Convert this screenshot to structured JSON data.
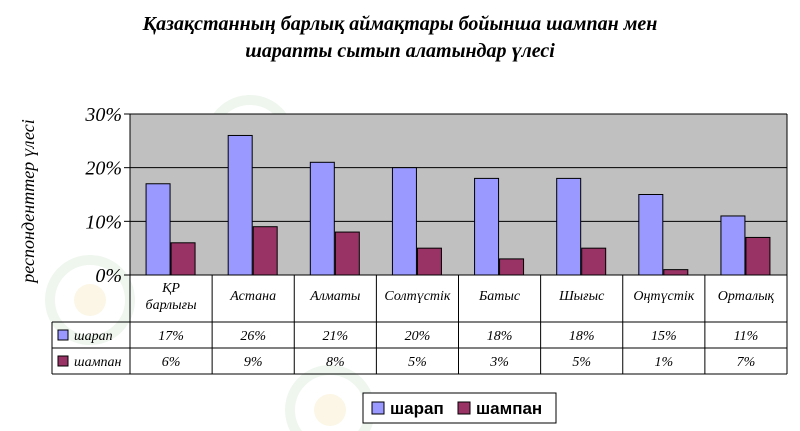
{
  "chart_data": {
    "type": "bar",
    "title_line1": "Қазақстанның барлық аймақтары бойынша шампан мен",
    "title_line2": "шарапты сытып алатындар үлесі",
    "ylabel": "респонденттер үлесі",
    "categories": [
      "ҚР|барлығы",
      "Астана",
      "Алматы",
      "Солтүстік",
      "Батыс",
      "Шығыс",
      "Оңтүстік",
      "Орталық"
    ],
    "ylim": [
      0,
      30
    ],
    "yticks": [
      "0%",
      "10%",
      "20%",
      "30%"
    ],
    "grid": true,
    "legend_position": "bottom",
    "series": [
      {
        "name": "шарап",
        "color": "#9999ff",
        "values": [
          17,
          26,
          21,
          20,
          18,
          18,
          15,
          11
        ],
        "labels": [
          "17%",
          "26%",
          "21%",
          "20%",
          "18%",
          "18%",
          "15%",
          "11%"
        ]
      },
      {
        "name": "шампан",
        "color": "#993366",
        "values": [
          6,
          9,
          8,
          5,
          3,
          5,
          1,
          7
        ],
        "labels": [
          "6%",
          "9%",
          "8%",
          "5%",
          "3%",
          "5%",
          "1%",
          "7%"
        ]
      }
    ],
    "plot_background": "#c0c0c0"
  }
}
